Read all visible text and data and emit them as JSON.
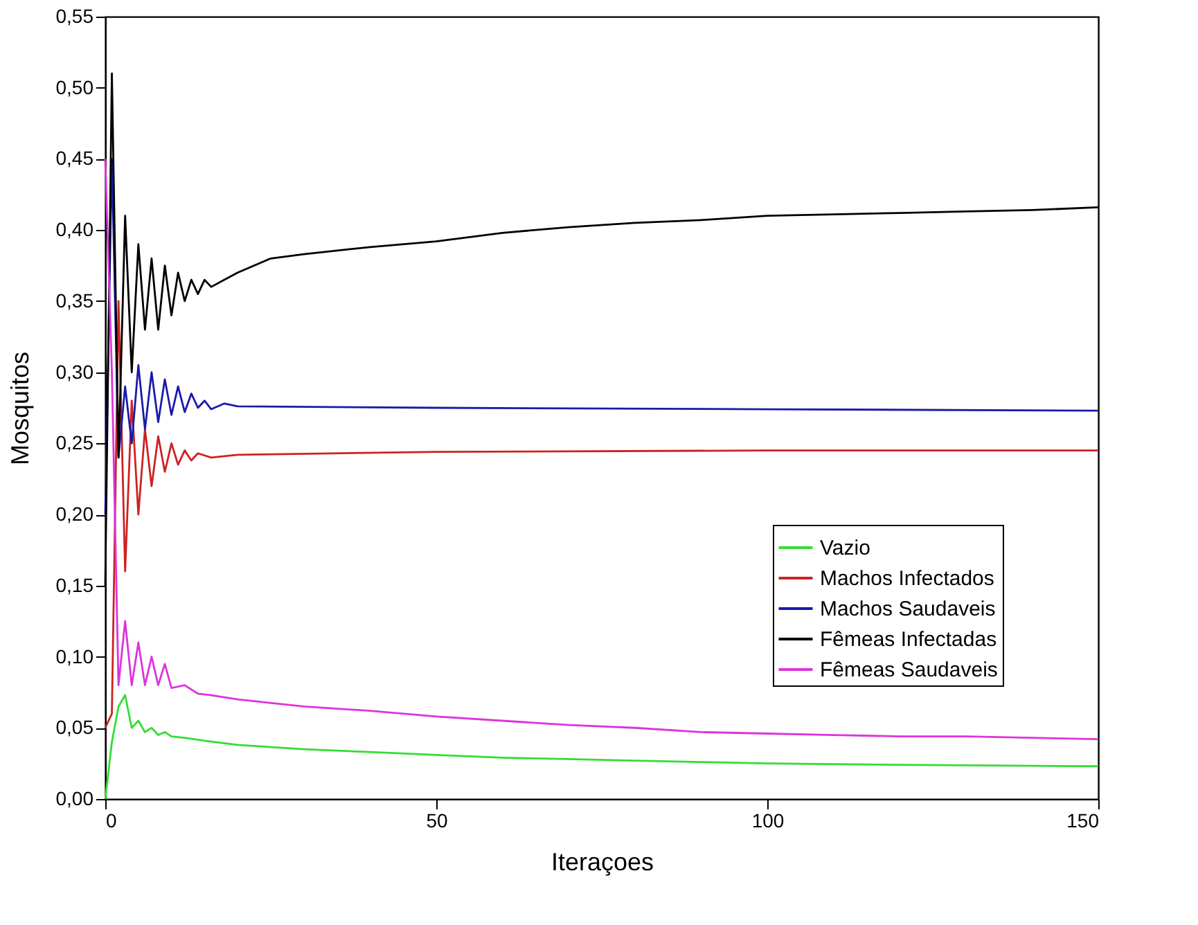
{
  "chart_data": {
    "type": "line",
    "xlabel": "Iteraçoes",
    "ylabel": "Mosquitos",
    "xlim": [
      0,
      150
    ],
    "xticks": [
      0,
      50,
      100,
      150
    ],
    "ylim": [
      0,
      0.55
    ],
    "yticks": [
      {
        "value": 0,
        "label": "0,00"
      },
      {
        "value": 0.05,
        "label": "0,05"
      },
      {
        "value": 0.1,
        "label": "0,10"
      },
      {
        "value": 0.15,
        "label": "0,15"
      },
      {
        "value": 0.2,
        "label": "0,20"
      },
      {
        "value": 0.25,
        "label": "0,25"
      },
      {
        "value": 0.3,
        "label": "0,30"
      },
      {
        "value": 0.35,
        "label": "0,35"
      },
      {
        "value": 0.4,
        "label": "0,40"
      },
      {
        "value": 0.45,
        "label": "0,45"
      },
      {
        "value": 0.5,
        "label": "0,50"
      },
      {
        "value": 0.55,
        "label": "0,55"
      }
    ],
    "grid": false,
    "legend": "right",
    "marker": "none",
    "line_style": "solid",
    "series": [
      {
        "name": "Vazio",
        "color": "#33dd33",
        "x": [
          0,
          1,
          2,
          3,
          4,
          5,
          6,
          7,
          8,
          9,
          10,
          12,
          15,
          20,
          30,
          40,
          50,
          60,
          70,
          80,
          90,
          100,
          120,
          150
        ],
        "values": [
          0,
          0.04,
          0.065,
          0.073,
          0.05,
          0.055,
          0.047,
          0.05,
          0.045,
          0.047,
          0.044,
          0.043,
          0.041,
          0.038,
          0.035,
          0.033,
          0.031,
          0.029,
          0.028,
          0.027,
          0.026,
          0.025,
          0.024,
          0.023
        ]
      },
      {
        "name": "Machos Infectados",
        "color": "#cc2222",
        "x": [
          0,
          1,
          2,
          3,
          4,
          5,
          6,
          7,
          8,
          9,
          10,
          11,
          12,
          13,
          14,
          16,
          20,
          50,
          100,
          150
        ],
        "values": [
          0.05,
          0.06,
          0.35,
          0.16,
          0.28,
          0.2,
          0.26,
          0.22,
          0.255,
          0.23,
          0.25,
          0.235,
          0.245,
          0.238,
          0.243,
          0.24,
          0.242,
          0.244,
          0.245,
          0.245
        ]
      },
      {
        "name": "Machos Saudaveis",
        "color": "#1a1aaa",
        "x": [
          0,
          1,
          2,
          3,
          4,
          5,
          6,
          7,
          8,
          9,
          10,
          11,
          12,
          13,
          14,
          15,
          16,
          18,
          20,
          50,
          100,
          150
        ],
        "values": [
          0.2,
          0.45,
          0.24,
          0.29,
          0.25,
          0.305,
          0.26,
          0.3,
          0.265,
          0.295,
          0.27,
          0.29,
          0.272,
          0.285,
          0.275,
          0.28,
          0.274,
          0.278,
          0.276,
          0.275,
          0.274,
          0.273
        ]
      },
      {
        "name": "Fêmeas Infectadas",
        "color": "#000000",
        "x": [
          0,
          1,
          2,
          3,
          4,
          5,
          6,
          7,
          8,
          9,
          10,
          11,
          12,
          13,
          14,
          15,
          16,
          18,
          20,
          25,
          30,
          40,
          50,
          60,
          70,
          80,
          90,
          100,
          110,
          120,
          130,
          140,
          150
        ],
        "values": [
          0.15,
          0.51,
          0.24,
          0.41,
          0.3,
          0.39,
          0.33,
          0.38,
          0.33,
          0.375,
          0.34,
          0.37,
          0.35,
          0.365,
          0.355,
          0.365,
          0.36,
          0.365,
          0.37,
          0.38,
          0.383,
          0.388,
          0.392,
          0.398,
          0.402,
          0.405,
          0.407,
          0.41,
          0.411,
          0.412,
          0.413,
          0.414,
          0.416
        ]
      },
      {
        "name": "Fêmeas Saudaveis",
        "color": "#dd33dd",
        "x": [
          0,
          1,
          2,
          3,
          4,
          5,
          6,
          7,
          8,
          9,
          10,
          12,
          14,
          16,
          20,
          30,
          40,
          50,
          60,
          70,
          80,
          90,
          100,
          110,
          120,
          130,
          140,
          150
        ],
        "values": [
          0.45,
          0.3,
          0.08,
          0.125,
          0.08,
          0.11,
          0.08,
          0.1,
          0.08,
          0.095,
          0.078,
          0.08,
          0.074,
          0.073,
          0.07,
          0.065,
          0.062,
          0.058,
          0.055,
          0.052,
          0.05,
          0.047,
          0.046,
          0.045,
          0.044,
          0.044,
          0.043,
          0.042
        ]
      }
    ]
  }
}
